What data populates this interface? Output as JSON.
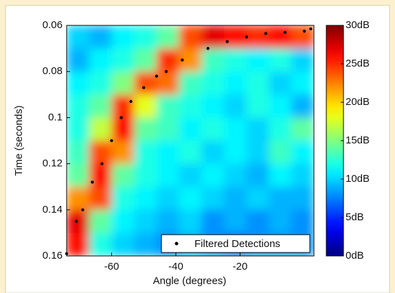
{
  "chart_data": {
    "type": "heatmap",
    "xlabel": "Angle (degrees)",
    "ylabel": "Time (seconds)",
    "xlim": [
      -74,
      3
    ],
    "ylim": [
      0.16,
      0.06
    ],
    "xticks": [
      -60,
      -40,
      -20
    ],
    "yticks": [
      0.06,
      0.08,
      0.1,
      0.12,
      0.14,
      0.16
    ],
    "xbins": [
      -74,
      -67,
      -60,
      -53,
      -46,
      -39,
      -32,
      -25,
      -18,
      -11,
      -4,
      3
    ],
    "ybins": [
      0.06,
      0.07,
      0.08,
      0.09,
      0.1,
      0.11,
      0.12,
      0.13,
      0.14,
      0.15,
      0.16
    ],
    "z": [
      [
        10,
        9,
        11,
        12,
        14,
        24,
        27,
        26,
        25,
        26,
        24
      ],
      [
        9,
        11,
        12,
        14,
        25,
        22,
        13,
        12,
        11,
        12,
        10
      ],
      [
        11,
        12,
        15,
        24,
        23,
        13,
        12,
        11,
        12,
        10,
        11
      ],
      [
        12,
        14,
        25,
        18,
        13,
        12,
        11,
        10,
        12,
        11,
        9
      ],
      [
        12,
        17,
        26,
        14,
        13,
        11,
        12,
        11,
        10,
        12,
        14
      ],
      [
        13,
        24,
        22,
        12,
        11,
        12,
        10,
        11,
        10,
        13,
        11
      ],
      [
        14,
        26,
        14,
        12,
        11,
        10,
        11,
        10,
        9,
        11,
        10
      ],
      [
        22,
        24,
        12,
        11,
        10,
        11,
        10,
        9,
        10,
        9,
        9
      ],
      [
        27,
        14,
        11,
        10,
        9,
        10,
        8,
        9,
        8,
        9,
        8
      ],
      [
        26,
        12,
        10,
        9,
        8,
        9,
        8,
        7,
        8,
        8,
        8
      ]
    ],
    "colormap": "jet",
    "clim": [
      0,
      30
    ],
    "cticks": [
      {
        "value": 0,
        "label": "0dB"
      },
      {
        "value": 5,
        "label": "5dB"
      },
      {
        "value": 10,
        "label": "10dB"
      },
      {
        "value": 15,
        "label": "15dB"
      },
      {
        "value": 20,
        "label": "20dB"
      },
      {
        "value": 25,
        "label": "25dB"
      },
      {
        "value": 30,
        "label": "30dB"
      }
    ],
    "series": [
      {
        "name": "Filtered Detections",
        "color": "#000000",
        "x": [
          -74,
          -71,
          -69,
          -66,
          -63,
          -60,
          -57,
          -54,
          -50,
          -46,
          -43,
          -38,
          -30,
          -24,
          -18,
          -12,
          -6,
          0,
          2
        ],
        "values": [
          0.159,
          0.145,
          0.14,
          0.128,
          0.12,
          0.11,
          0.1,
          0.093,
          0.087,
          0.082,
          0.08,
          0.075,
          0.07,
          0.067,
          0.065,
          0.0635,
          0.063,
          0.0625,
          0.0615
        ]
      }
    ],
    "legend": "lower right"
  }
}
